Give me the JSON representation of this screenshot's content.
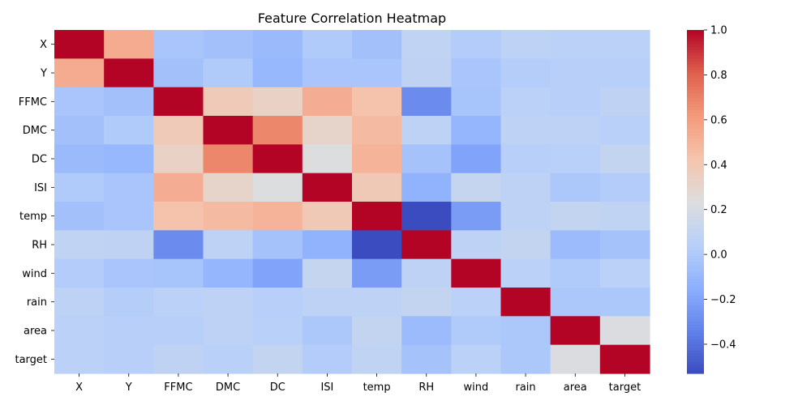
{
  "chart_data": {
    "type": "heatmap",
    "title": "Feature Correlation Heatmap",
    "rows": [
      "X",
      "Y",
      "FFMC",
      "DMC",
      "DC",
      "ISI",
      "temp",
      "RH",
      "wind",
      "rain",
      "area",
      "target"
    ],
    "columns": [
      "X",
      "Y",
      "FFMC",
      "DMC",
      "DC",
      "ISI",
      "temp",
      "RH",
      "wind",
      "rain",
      "area",
      "target"
    ],
    "values": [
      [
        1.0,
        0.54,
        -0.02,
        -0.05,
        -0.09,
        0.01,
        -0.05,
        0.09,
        0.02,
        0.07,
        0.06,
        0.06
      ],
      [
        0.54,
        1.0,
        -0.05,
        0.01,
        -0.1,
        -0.02,
        -0.02,
        0.08,
        -0.02,
        0.03,
        0.04,
        0.04
      ],
      [
        -0.02,
        -0.05,
        1.0,
        0.38,
        0.33,
        0.53,
        0.43,
        -0.3,
        -0.03,
        0.06,
        0.04,
        0.08
      ],
      [
        -0.05,
        0.01,
        0.38,
        1.0,
        0.68,
        0.31,
        0.47,
        0.07,
        -0.11,
        0.07,
        0.07,
        0.05
      ],
      [
        -0.09,
        -0.1,
        0.33,
        0.68,
        1.0,
        0.23,
        0.5,
        -0.04,
        -0.2,
        0.04,
        0.05,
        0.1
      ],
      [
        0.01,
        -0.02,
        0.53,
        0.31,
        0.23,
        1.0,
        0.39,
        -0.13,
        0.11,
        0.07,
        -0.01,
        0.02
      ],
      [
        -0.05,
        -0.02,
        0.43,
        0.47,
        0.5,
        0.39,
        1.0,
        -0.53,
        -0.23,
        0.07,
        0.1,
        0.09
      ],
      [
        0.09,
        0.08,
        -0.3,
        0.07,
        -0.04,
        -0.13,
        -0.53,
        1.0,
        0.07,
        0.1,
        -0.08,
        -0.04
      ],
      [
        0.02,
        -0.02,
        -0.03,
        -0.11,
        -0.2,
        0.11,
        -0.23,
        0.07,
        1.0,
        0.06,
        0.01,
        0.06
      ],
      [
        0.07,
        0.03,
        0.06,
        0.07,
        0.04,
        0.07,
        0.07,
        0.1,
        0.06,
        1.0,
        -0.01,
        -0.01
      ],
      [
        0.06,
        0.04,
        0.04,
        0.07,
        0.05,
        -0.01,
        0.1,
        -0.08,
        0.01,
        -0.01,
        1.0,
        0.22
      ],
      [
        0.06,
        0.04,
        0.08,
        0.05,
        0.1,
        0.02,
        0.09,
        -0.04,
        0.06,
        -0.01,
        0.22,
        1.0
      ]
    ],
    "colormap": "coolwarm",
    "vmin": -0.53,
    "vmax": 1.0,
    "colorbar_ticks": [
      1.0,
      0.8,
      0.6,
      0.4,
      0.2,
      0.0,
      -0.2,
      -0.4
    ],
    "colorbar_tick_labels": [
      "1.0",
      "0.8",
      "0.6",
      "0.4",
      "0.2",
      "0.0",
      "−0.2",
      "−0.4"
    ]
  }
}
